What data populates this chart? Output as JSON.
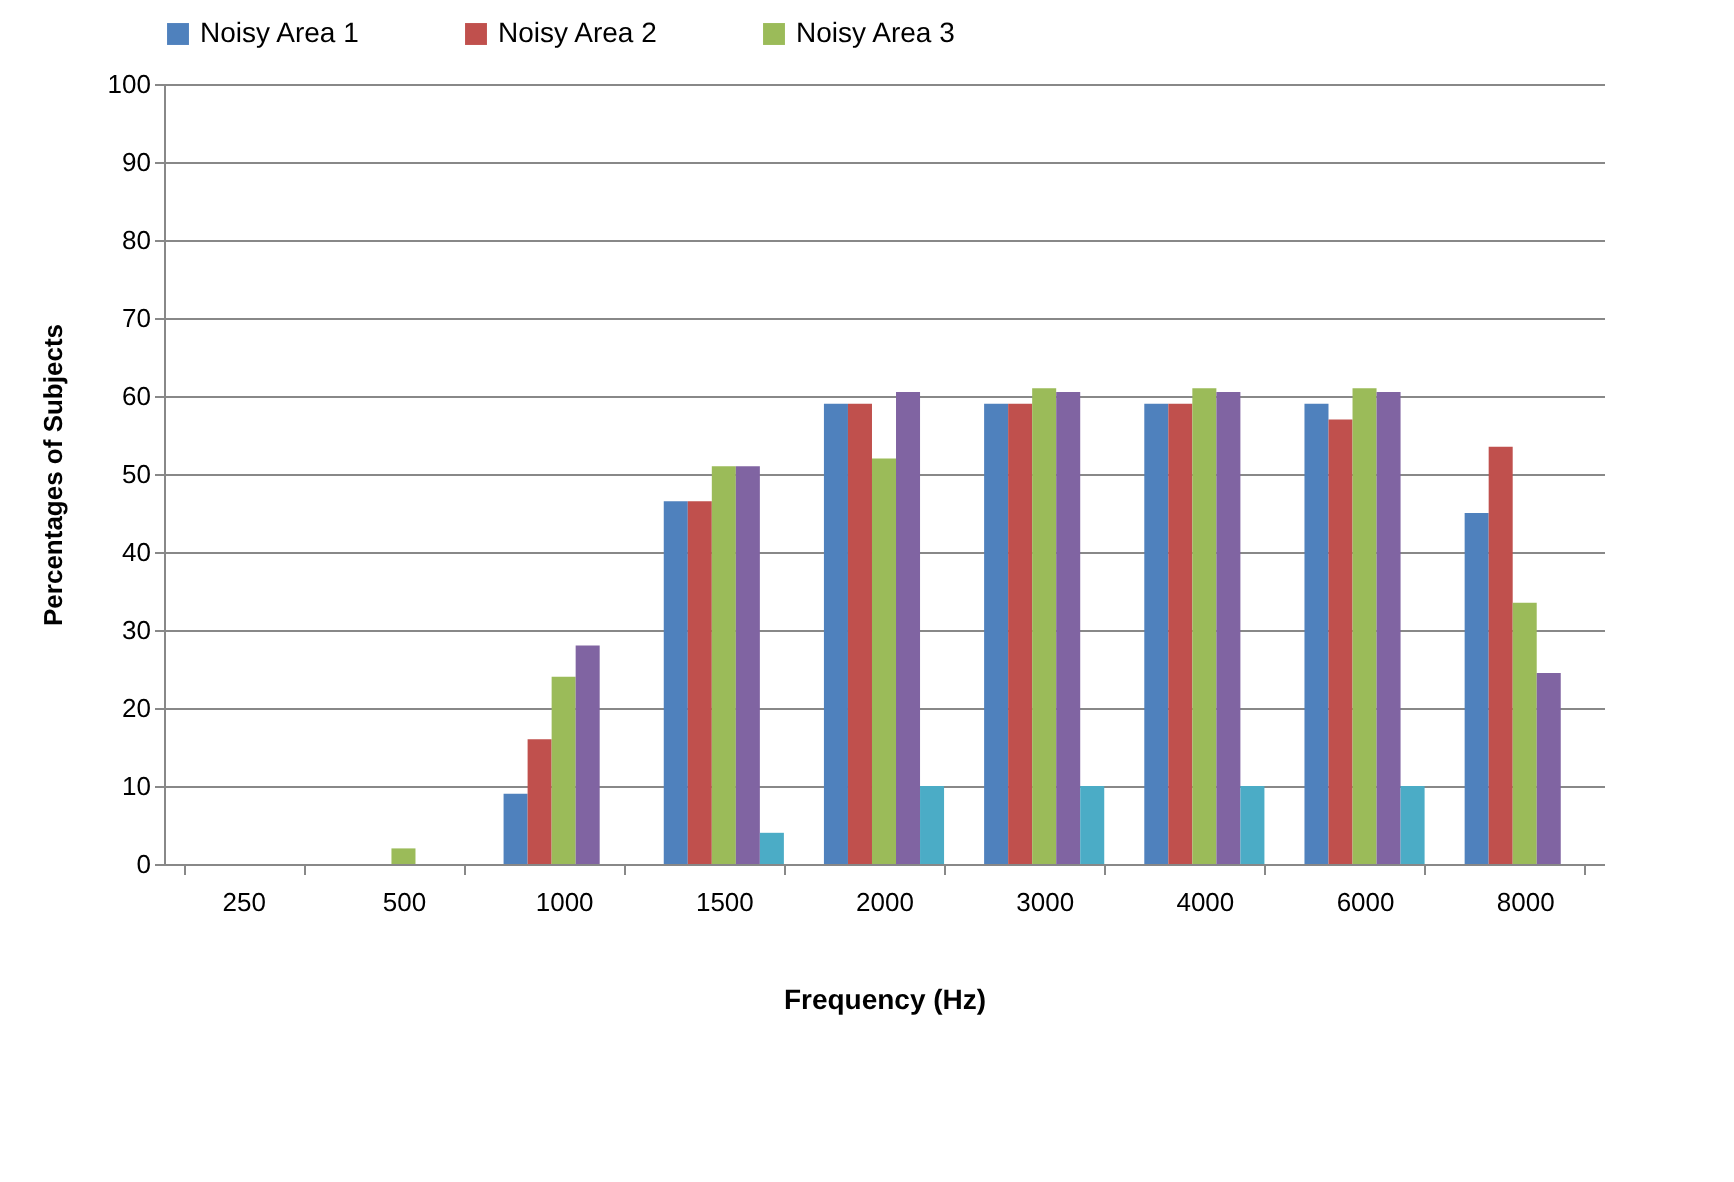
{
  "chart_data": {
    "type": "bar",
    "xlabel": "Frequency (Hz)",
    "ylabel": "Percentages of Subjects",
    "categories": [
      "250",
      "500",
      "1000",
      "1500",
      "2000",
      "3000",
      "4000",
      "6000",
      "8000"
    ],
    "series": [
      {
        "name": "Noisy Area 1",
        "color": "#4f81bd",
        "values": [
          0,
          0,
          9,
          46.5,
          59,
          59,
          59,
          59,
          45
        ]
      },
      {
        "name": "Noisy Area 2",
        "color": "#c0504d",
        "values": [
          0,
          0,
          16,
          46.5,
          59,
          59,
          59,
          57,
          53.5
        ]
      },
      {
        "name": "Noisy Area 3",
        "color": "#9bbb59",
        "values": [
          0,
          2,
          24,
          51,
          52,
          61,
          61,
          61,
          33.5
        ]
      },
      {
        "color": "#8064a2",
        "values": [
          0,
          0,
          28,
          51,
          60.5,
          60.5,
          60.5,
          60.5,
          24.5
        ]
      },
      {
        "color": "#4bacc6",
        "values": [
          0,
          0,
          0,
          4,
          10,
          10,
          10,
          10,
          0
        ]
      }
    ],
    "ylim": [
      0,
      100
    ],
    "yticks": [
      0,
      10,
      20,
      30,
      40,
      50,
      60,
      70,
      80,
      90,
      100
    ],
    "grid": "y",
    "legend": "top"
  }
}
